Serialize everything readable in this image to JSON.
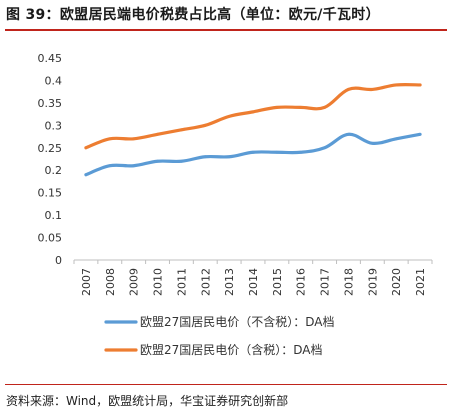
{
  "header": {
    "title": "图 39：欧盟居民端电价税费占比高（单位：欧元/千瓦时）"
  },
  "footer": {
    "source": "资料来源：Wind，欧盟统计局，华宝证券研究创新部"
  },
  "chart_data": {
    "type": "line",
    "categories": [
      "2007",
      "2008",
      "2009",
      "2010",
      "2011",
      "2012",
      "2013",
      "2014",
      "2015",
      "2016",
      "2017",
      "2018",
      "2019",
      "2020",
      "2021"
    ],
    "series": [
      {
        "name": "欧盟27国居民电价（不含税）：DA档",
        "color": "#5b9bd5",
        "values": [
          0.19,
          0.21,
          0.21,
          0.22,
          0.22,
          0.23,
          0.23,
          0.24,
          0.24,
          0.24,
          0.25,
          0.28,
          0.26,
          0.27,
          0.28
        ]
      },
      {
        "name": "欧盟27国居民电价（含税）：DA档",
        "color": "#ed7d31",
        "values": [
          0.25,
          0.27,
          0.27,
          0.28,
          0.29,
          0.3,
          0.32,
          0.33,
          0.34,
          0.34,
          0.34,
          0.38,
          0.38,
          0.39,
          0.39
        ]
      }
    ],
    "ylim": [
      0,
      0.45
    ],
    "yticks": [
      "0",
      "0.05",
      "0.1",
      "0.15",
      "0.2",
      "0.25",
      "0.3",
      "0.35",
      "0.4",
      "0.45"
    ],
    "grid": false,
    "legend_position": "bottom"
  }
}
